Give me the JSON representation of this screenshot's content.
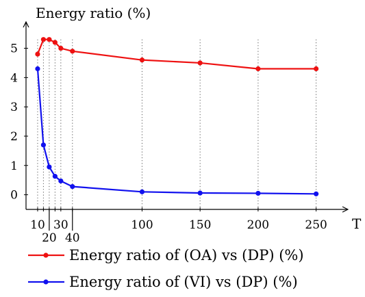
{
  "chart_data": {
    "type": "line",
    "ylabel": "Energy ratio (%)",
    "xlabel": "T",
    "x": [
      10,
      15,
      20,
      25,
      30,
      40,
      100,
      150,
      200,
      250
    ],
    "xlim": [
      0,
      275
    ],
    "ylim": [
      -0.5,
      5.9
    ],
    "x_ticks": [
      10,
      15,
      20,
      25,
      30,
      40,
      100,
      150,
      200,
      250
    ],
    "x_tick_labels": [
      {
        "value": 10,
        "text": "10",
        "row": 0
      },
      {
        "value": 20,
        "text": "20",
        "row": 1
      },
      {
        "value": 30,
        "text": "30",
        "row": 0
      },
      {
        "value": 40,
        "text": "40",
        "row": 1
      },
      {
        "value": 100,
        "text": "100",
        "row": 0
      },
      {
        "value": 150,
        "text": "150",
        "row": 0
      },
      {
        "value": 200,
        "text": "200",
        "row": 0
      },
      {
        "value": 250,
        "text": "250",
        "row": 0
      }
    ],
    "y_ticks": [
      0,
      1,
      2,
      3,
      4,
      5
    ],
    "grid": "dotted vertical lines at data x values",
    "legend_position": "bottom",
    "series": [
      {
        "name": "Energy ratio of (OA) vs (DP) (%)",
        "color": "#ee1111",
        "values": [
          4.8,
          5.3,
          5.3,
          5.2,
          5.0,
          4.9,
          4.6,
          4.5,
          4.3,
          4.3
        ]
      },
      {
        "name": "Energy ratio of (VI) vs (DP) (%)",
        "color": "#1111ee",
        "values": [
          4.3,
          1.7,
          0.95,
          0.63,
          0.47,
          0.28,
          0.1,
          0.06,
          0.05,
          0.03
        ]
      }
    ]
  }
}
